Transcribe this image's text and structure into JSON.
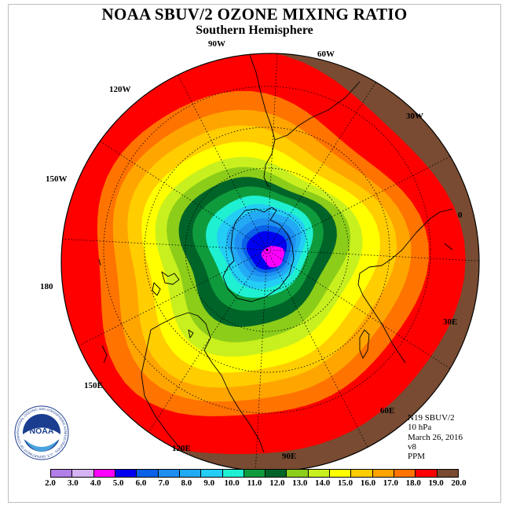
{
  "title": "NOAA SBUV/2 OZONE MIXING RATIO",
  "subtitle": "Southern Hemisphere",
  "longitude_labels": [
    "90W",
    "60W",
    "120W",
    "30W",
    "150W",
    "0",
    "180",
    "30E",
    "150E",
    "60E",
    "120E",
    "90E"
  ],
  "info": {
    "satellite": "N19 SBUV/2",
    "level": "10 hPa",
    "date": "March 26, 2016",
    "version": "v8",
    "units": "PPM"
  },
  "logo": {
    "text": "NOAA",
    "ring_text": "NATIONAL OCEANIC AND ATMOSPHERIC ADMINISTRATION · U.S. DEPARTMENT OF COMMERCE"
  },
  "colorbar": {
    "ticks": [
      "2.0",
      "3.0",
      "4.0",
      "5.0",
      "6.0",
      "7.0",
      "8.0",
      "9.0",
      "10.0",
      "11.0",
      "12.0",
      "13.0",
      "14.0",
      "15.0",
      "16.0",
      "17.0",
      "18.0",
      "19.0",
      "20.0"
    ],
    "colors": [
      "#b27fe9",
      "#d5b2f2",
      "#ff00ff",
      "#0000f0",
      "#0a60e6",
      "#1e8ff0",
      "#23aaf5",
      "#23cdf5",
      "#1ff0d2",
      "#0f9b3c",
      "#006428",
      "#8ccd19",
      "#c8f01e",
      "#ffff00",
      "#ffcd00",
      "#ffa500",
      "#ff7300",
      "#ff0000",
      "#784b32"
    ]
  },
  "contours": [
    {
      "level": "19.0",
      "color": "#ff0000"
    },
    {
      "level": "18.0",
      "color": "#ff7300"
    },
    {
      "level": "17.0",
      "color": "#ffa500"
    },
    {
      "level": "16.0",
      "color": "#ffcd00"
    },
    {
      "level": "15.0",
      "color": "#ffff00"
    },
    {
      "level": "14.0",
      "color": "#c8f01e"
    },
    {
      "level": "13.0",
      "color": "#8ccd19"
    },
    {
      "level": "12.0",
      "color": "#006428"
    },
    {
      "level": "11.0",
      "color": "#0f9b3c"
    },
    {
      "level": "10.0",
      "color": "#1ff0d2"
    },
    {
      "level": "9.0",
      "color": "#23cdf5"
    },
    {
      "level": "8.0",
      "color": "#23aaf5"
    },
    {
      "level": "7.0",
      "color": "#1e8ff0"
    },
    {
      "level": "6.0",
      "color": "#0a60e6"
    },
    {
      "level": "5.0",
      "color": "#0000f0"
    },
    {
      "level": "4.0",
      "color": "#ff00ff"
    }
  ],
  "background_color": "#784b32"
}
